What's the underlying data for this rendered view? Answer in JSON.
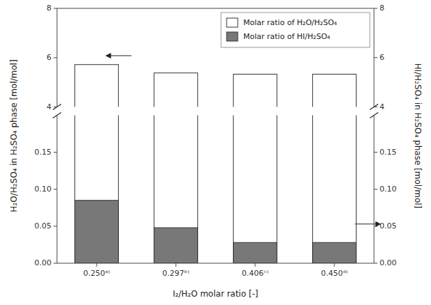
{
  "chart_data": {
    "type": "bar",
    "categories": [
      "0.250ᵃ⁾",
      "0.297ᵇ⁾",
      "0.406ᶜ⁾",
      "0.450ᵈ⁾"
    ],
    "series": [
      {
        "name": "Molar ratio of H₂O/H₂SO₄",
        "color": "#FFFFFF",
        "values": [
          5.72,
          5.38,
          5.33,
          5.33
        ]
      },
      {
        "name": "Molar ratio of HI/H₂SO₄",
        "color": "#787878",
        "values": [
          0.085,
          0.048,
          0.028,
          0.028
        ],
        "axis": "y2"
      }
    ],
    "xlabel": "I₂/H₂O molar ratio [-]",
    "ylabel": "H₂O/H₂SO₄ in H₂SO₄ phase [mol/mol]",
    "y2label": "HI/H₂SO₄ in H₂SO₄ phase [mol/mol]",
    "ylim": [
      4,
      8
    ],
    "yticks": [
      4,
      6,
      8
    ],
    "y2lim": [
      0.0,
      0.2
    ],
    "y2ticks": [
      {
        "value": 0,
        "label": "0.00"
      },
      0.05,
      {
        "value": 0.1,
        "label": "0.10"
      },
      0.15
    ],
    "legend": "upper right",
    "grid": false
  }
}
